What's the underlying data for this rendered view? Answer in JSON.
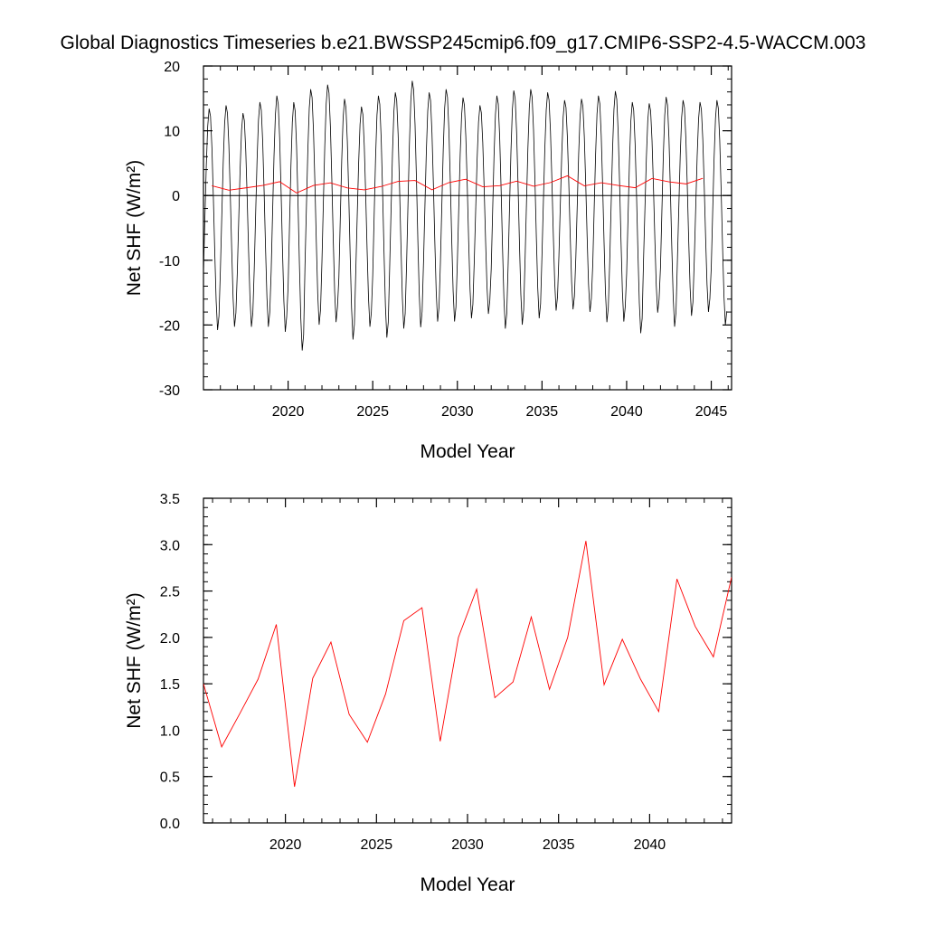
{
  "title": "Global Diagnostics Timeseries b.e21.BWSSP245cmip6.f09_g17.CMIP6-SSP2-4.5-WACCM.003",
  "colors": {
    "monthly_line": "#000000",
    "annual_line": "#ff0000",
    "axis": "#000000"
  },
  "chart_data": [
    {
      "type": "line",
      "xlabel": "Model Year",
      "ylabel": "Net SHF (W/m²)",
      "xlim": [
        2015,
        2046.2
      ],
      "ylim": [
        -30,
        20
      ],
      "xticks": [
        2020,
        2025,
        2030,
        2035,
        2040,
        2045
      ],
      "yticks": [
        -30,
        -20,
        -10,
        0,
        10,
        20
      ],
      "zero_line": true,
      "series": [
        {
          "kind": "monthly",
          "color": "#000000",
          "x_start": 2015.0,
          "step": 0.0833333,
          "peaks": [
            13.5,
            14,
            12.8,
            14.5,
            15.5,
            14.5,
            16.5,
            17.2,
            15,
            13.8,
            15.5,
            16,
            17.8,
            16,
            16.5,
            15.2,
            14,
            15.5,
            16.3,
            16.5,
            16,
            14.8,
            15,
            15.5,
            16.2,
            14.5,
            14.3,
            15.3,
            14.8,
            14.5,
            14.8
          ],
          "troughs": [
            -21,
            -20.5,
            -20.5,
            -20.5,
            -21.3,
            -24.2,
            -20.2,
            -19.8,
            -22.5,
            -20.5,
            -22.2,
            -20.8,
            -20.6,
            -19.7,
            -19.7,
            -19.2,
            -18.5,
            -20.8,
            -20.2,
            -19.2,
            -18,
            -17.8,
            -18.2,
            -19.8,
            -19.7,
            -21.5,
            -18.3,
            -20.5,
            -18.8,
            -18.2,
            -20.3
          ]
        },
        {
          "kind": "annual",
          "color": "#ff0000",
          "x": [
            2015.5,
            2016.5,
            2017.5,
            2018.5,
            2019.5,
            2020.5,
            2021.5,
            2022.5,
            2023.5,
            2024.5,
            2025.5,
            2026.5,
            2027.5,
            2028.5,
            2029.5,
            2030.5,
            2031.5,
            2032.5,
            2033.5,
            2034.5,
            2035.5,
            2036.5,
            2037.5,
            2038.5,
            2039.5,
            2040.5,
            2041.5,
            2042.5,
            2043.5,
            2044.5
          ],
          "values": [
            1.5,
            0.82,
            1.18,
            1.55,
            2.14,
            0.39,
            1.56,
            1.95,
            1.17,
            0.87,
            1.39,
            2.18,
            2.32,
            0.88,
            2.0,
            2.52,
            1.35,
            1.52,
            2.22,
            1.44,
            2.0,
            3.04,
            1.49,
            1.98,
            1.55,
            1.2,
            2.63,
            2.12,
            1.79,
            2.65
          ]
        }
      ]
    },
    {
      "type": "line",
      "xlabel": "Model Year",
      "ylabel": "Net SHF (W/m²)",
      "xlim": [
        2015.5,
        2044.5
      ],
      "ylim": [
        0.0,
        3.5
      ],
      "xticks": [
        2020,
        2025,
        2030,
        2035,
        2040
      ],
      "yticks": [
        0.0,
        0.5,
        1.0,
        1.5,
        2.0,
        2.5,
        3.0,
        3.5
      ],
      "ytick_labels": [
        "0.0",
        "0.5",
        "1.0",
        "1.5",
        "2.0",
        "2.5",
        "3.0",
        "3.5"
      ],
      "series": [
        {
          "kind": "annual",
          "color": "#ff0000",
          "x": [
            2015.5,
            2016.5,
            2017.5,
            2018.5,
            2019.5,
            2020.5,
            2021.5,
            2022.5,
            2023.5,
            2024.5,
            2025.5,
            2026.5,
            2027.5,
            2028.5,
            2029.5,
            2030.5,
            2031.5,
            2032.5,
            2033.5,
            2034.5,
            2035.5,
            2036.5,
            2037.5,
            2038.5,
            2039.5,
            2040.5,
            2041.5,
            2042.5,
            2043.5,
            2044.5
          ],
          "values": [
            1.5,
            0.82,
            1.18,
            1.55,
            2.14,
            0.39,
            1.56,
            1.95,
            1.17,
            0.87,
            1.39,
            2.18,
            2.32,
            0.88,
            2.0,
            2.52,
            1.35,
            1.52,
            2.22,
            1.44,
            2.0,
            3.04,
            1.49,
            1.98,
            1.55,
            1.2,
            2.63,
            2.12,
            1.79,
            2.65
          ]
        }
      ]
    }
  ]
}
